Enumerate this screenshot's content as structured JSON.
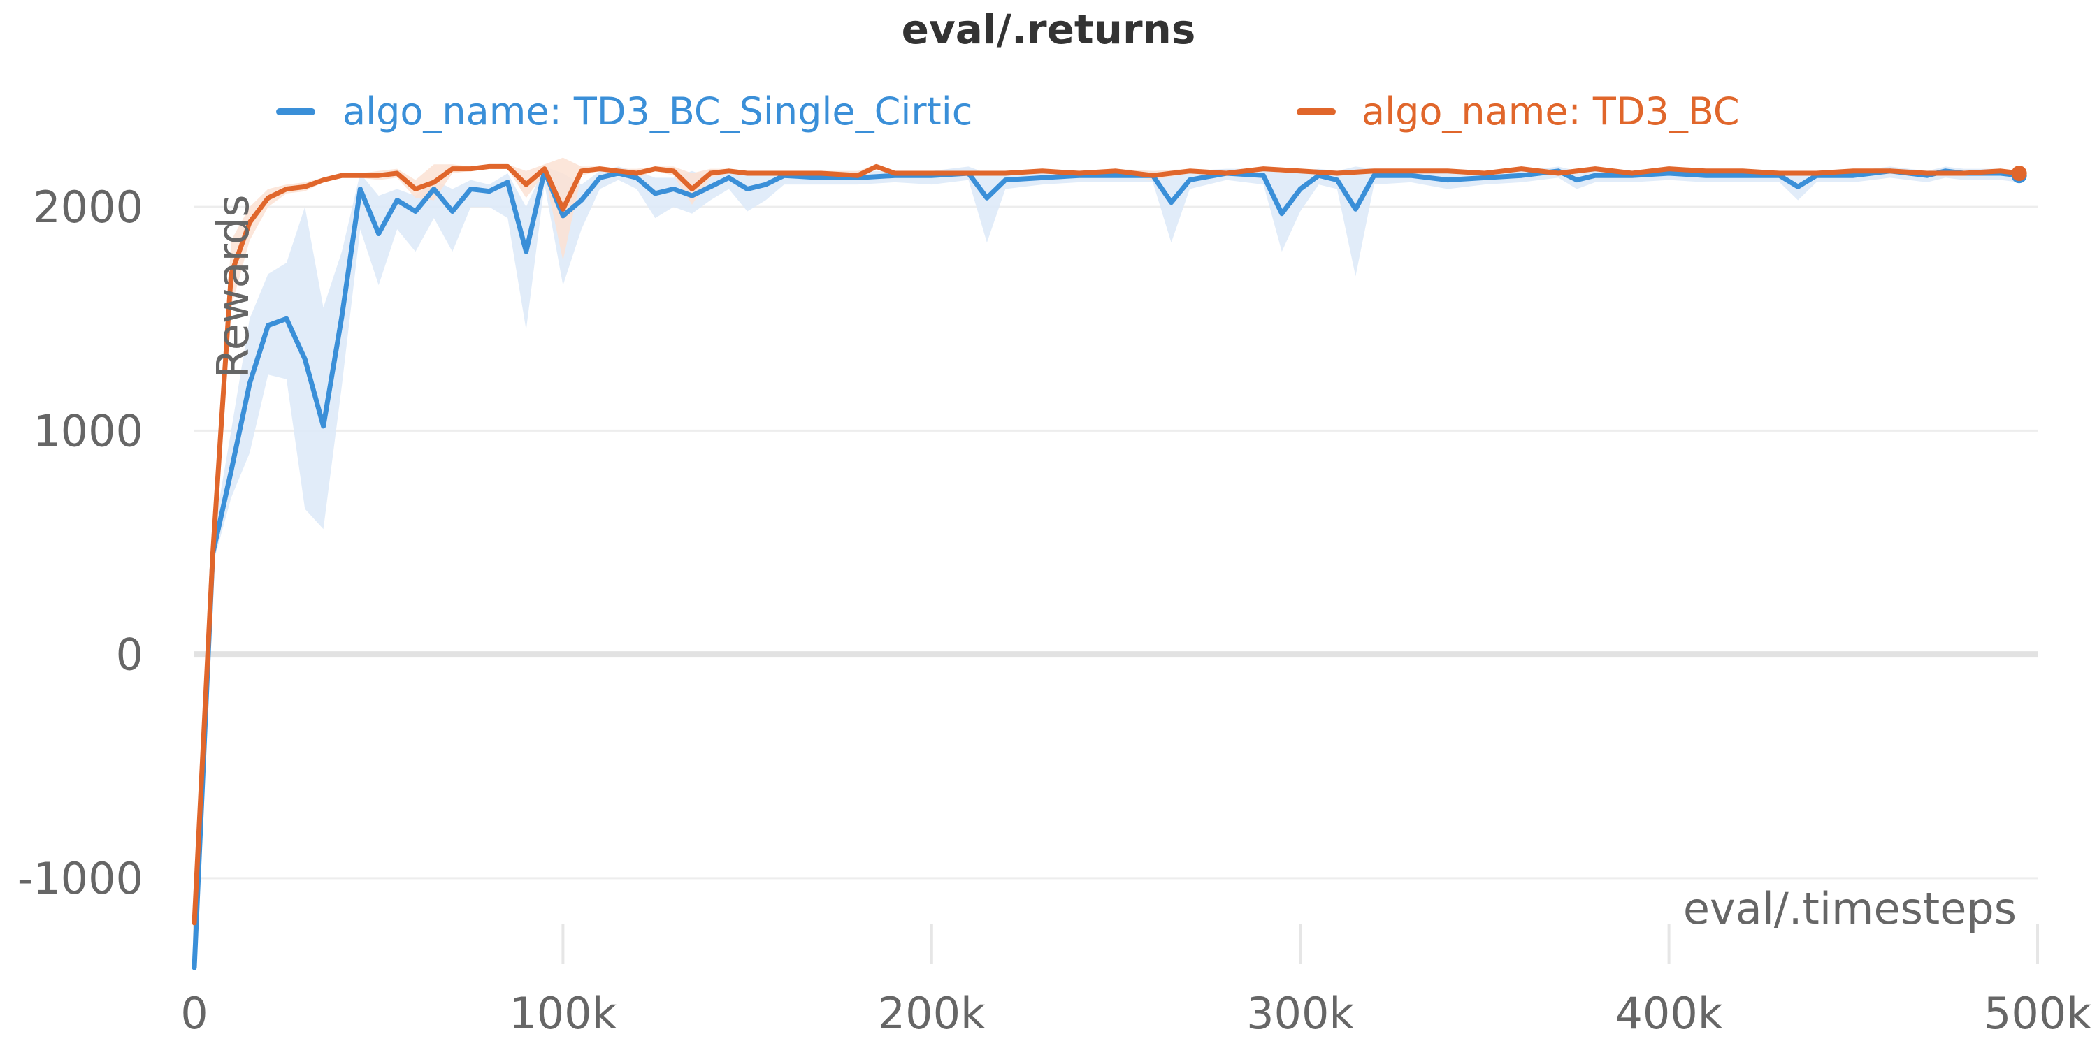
{
  "chart_data": {
    "type": "line",
    "title": "eval/.returns",
    "xlabel": "eval/.timesteps",
    "ylabel": "Rewards",
    "xlim": [
      0,
      500000
    ],
    "ylim": [
      -1400,
      2300
    ],
    "x_ticks": [
      0,
      100000,
      200000,
      300000,
      400000,
      500000
    ],
    "x_tick_labels": [
      "0",
      "100k",
      "200k",
      "300k",
      "400k",
      "500k"
    ],
    "y_ticks": [
      -1000,
      0,
      1000,
      2000
    ],
    "y_tick_labels": [
      "-1000",
      "0",
      "1000",
      "2000"
    ],
    "grid": true,
    "legend_position": "top",
    "series": [
      {
        "name": "algo_name: TD3_BC_Single_Cirtic",
        "color": "#3a8fd8",
        "band_color": "#dce9f8",
        "x": [
          0,
          5000,
          10000,
          15000,
          20000,
          25000,
          30000,
          35000,
          40000,
          45000,
          50000,
          55000,
          60000,
          65000,
          70000,
          75000,
          80000,
          85000,
          90000,
          95000,
          100000,
          105000,
          110000,
          115000,
          120000,
          125000,
          130000,
          135000,
          140000,
          145000,
          150000,
          155000,
          160000,
          170000,
          180000,
          190000,
          200000,
          210000,
          215000,
          220000,
          230000,
          240000,
          250000,
          260000,
          265000,
          270000,
          280000,
          290000,
          295000,
          300000,
          305000,
          310000,
          315000,
          320000,
          330000,
          340000,
          350000,
          360000,
          370000,
          375000,
          380000,
          390000,
          400000,
          410000,
          420000,
          430000,
          435000,
          440000,
          450000,
          460000,
          470000,
          475000,
          480000,
          490000,
          495000
        ],
        "values": [
          -1400,
          450,
          820,
          1210,
          1470,
          1500,
          1320,
          1020,
          1510,
          2080,
          1880,
          2030,
          1980,
          2080,
          1980,
          2080,
          2070,
          2110,
          1800,
          2160,
          1960,
          2030,
          2130,
          2150,
          2130,
          2060,
          2080,
          2050,
          2090,
          2130,
          2080,
          2100,
          2140,
          2130,
          2130,
          2140,
          2140,
          2150,
          2040,
          2120,
          2130,
          2140,
          2140,
          2140,
          2020,
          2120,
          2150,
          2140,
          1970,
          2080,
          2140,
          2120,
          1990,
          2140,
          2140,
          2120,
          2130,
          2140,
          2160,
          2120,
          2140,
          2140,
          2150,
          2140,
          2140,
          2140,
          2090,
          2140,
          2140,
          2160,
          2140,
          2160,
          2150,
          2150,
          2140
        ],
        "band_upper": [
          -1400,
          520,
          1000,
          1500,
          1700,
          1750,
          2000,
          1550,
          1800,
          2150,
          2050,
          2080,
          2050,
          2120,
          2080,
          2120,
          2100,
          2150,
          2000,
          2180,
          2150,
          2100,
          2160,
          2180,
          2160,
          2130,
          2130,
          2160,
          2130,
          2160,
          2150,
          2150,
          2160,
          2160,
          2160,
          2160,
          2160,
          2180,
          2150,
          2160,
          2160,
          2160,
          2160,
          2160,
          2150,
          2160,
          2170,
          2170,
          2150,
          2160,
          2170,
          2160,
          2180,
          2170,
          2160,
          2160,
          2160,
          2160,
          2180,
          2160,
          2160,
          2160,
          2170,
          2160,
          2160,
          2160,
          2150,
          2160,
          2160,
          2180,
          2160,
          2180,
          2170,
          2170,
          2160
        ],
        "band_lower": [
          -1400,
          400,
          700,
          900,
          1250,
          1230,
          650,
          560,
          1200,
          1900,
          1650,
          1900,
          1800,
          1950,
          1800,
          2000,
          2000,
          1950,
          1450,
          2100,
          1650,
          1900,
          2080,
          2120,
          2080,
          1950,
          2000,
          1970,
          2030,
          2080,
          1980,
          2030,
          2100,
          2100,
          2100,
          2110,
          2100,
          2120,
          1840,
          2080,
          2100,
          2110,
          2110,
          2110,
          1840,
          2080,
          2120,
          2100,
          1800,
          1980,
          2100,
          2080,
          1690,
          2100,
          2110,
          2080,
          2100,
          2110,
          2130,
          2080,
          2110,
          2110,
          2120,
          2110,
          2110,
          2110,
          2030,
          2110,
          2110,
          2130,
          2110,
          2130,
          2120,
          2120,
          2110
        ]
      },
      {
        "name": "algo_name: TD3_BC",
        "color": "#e0662b",
        "band_color": "#fbe2d4",
        "x": [
          0,
          5000,
          10000,
          15000,
          20000,
          25000,
          30000,
          35000,
          40000,
          45000,
          50000,
          55000,
          60000,
          65000,
          70000,
          75000,
          80000,
          85000,
          90000,
          95000,
          100000,
          105000,
          110000,
          115000,
          120000,
          125000,
          130000,
          135000,
          140000,
          145000,
          150000,
          160000,
          170000,
          180000,
          185000,
          190000,
          200000,
          210000,
          220000,
          230000,
          240000,
          250000,
          260000,
          270000,
          280000,
          290000,
          300000,
          310000,
          320000,
          330000,
          340000,
          350000,
          360000,
          370000,
          380000,
          390000,
          400000,
          410000,
          420000,
          430000,
          440000,
          450000,
          460000,
          470000,
          480000,
          490000,
          495000
        ],
        "values": [
          -1200,
          450,
          1700,
          1930,
          2040,
          2080,
          2090,
          2120,
          2140,
          2140,
          2140,
          2150,
          2080,
          2110,
          2170,
          2170,
          2180,
          2180,
          2100,
          2170,
          1990,
          2160,
          2170,
          2160,
          2150,
          2170,
          2160,
          2080,
          2150,
          2160,
          2150,
          2150,
          2150,
          2140,
          2180,
          2150,
          2150,
          2150,
          2150,
          2160,
          2150,
          2160,
          2140,
          2160,
          2150,
          2170,
          2160,
          2150,
          2160,
          2160,
          2160,
          2150,
          2170,
          2150,
          2170,
          2150,
          2170,
          2160,
          2160,
          2150,
          2150,
          2160,
          2160,
          2150,
          2150,
          2160,
          2150
        ],
        "band_upper": [
          -1200,
          470,
          1850,
          2000,
          2080,
          2100,
          2110,
          2130,
          2150,
          2150,
          2160,
          2170,
          2120,
          2190,
          2190,
          2180,
          2190,
          2190,
          2160,
          2190,
          2220,
          2180,
          2180,
          2170,
          2170,
          2180,
          2180,
          2150,
          2170,
          2170,
          2160,
          2160,
          2160,
          2160,
          2190,
          2160,
          2160,
          2160,
          2160,
          2170,
          2160,
          2170,
          2160,
          2170,
          2160,
          2180,
          2170,
          2160,
          2170,
          2170,
          2170,
          2160,
          2180,
          2160,
          2180,
          2160,
          2180,
          2170,
          2170,
          2160,
          2160,
          2170,
          2170,
          2160,
          2160,
          2170,
          2160
        ],
        "band_lower": [
          -1200,
          430,
          1550,
          1850,
          2000,
          2060,
          2070,
          2110,
          2130,
          2130,
          2120,
          2130,
          2040,
          2030,
          2150,
          2160,
          2170,
          2170,
          2040,
          2150,
          1760,
          2140,
          2160,
          2150,
          2130,
          2160,
          2140,
          2010,
          2130,
          2150,
          2140,
          2140,
          2140,
          2120,
          2170,
          2140,
          2140,
          2140,
          2140,
          2150,
          2140,
          2150,
          2120,
          2150,
          2140,
          2160,
          2150,
          2140,
          2150,
          2150,
          2150,
          2140,
          2160,
          2140,
          2160,
          2140,
          2160,
          2150,
          2150,
          2140,
          2140,
          2150,
          2150,
          2140,
          2140,
          2150,
          2140
        ]
      }
    ]
  }
}
